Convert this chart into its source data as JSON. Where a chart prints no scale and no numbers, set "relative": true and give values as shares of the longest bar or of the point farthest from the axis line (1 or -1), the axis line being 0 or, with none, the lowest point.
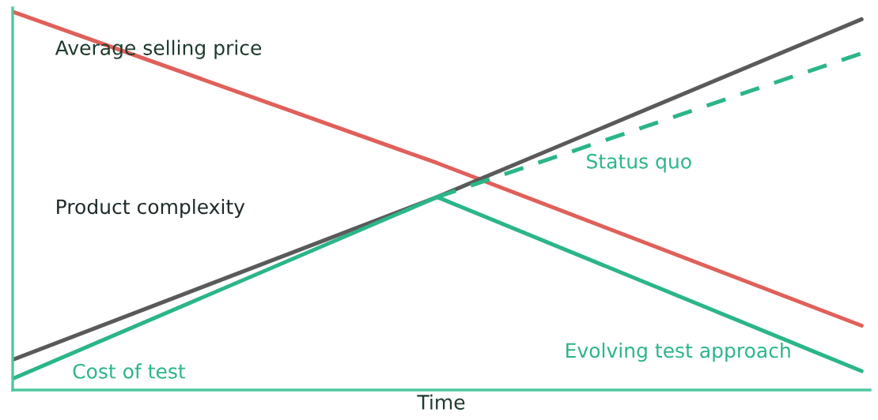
{
  "chart_data": {
    "type": "line",
    "relative": true,
    "xlabel": "Time",
    "categories": [
      null,
      null,
      null
    ],
    "legend": false,
    "tick_labels": false,
    "series": [
      {
        "name": "Average selling price",
        "color": "#e0605a",
        "values": [
          1,
          0.6,
          0.17
        ]
      },
      {
        "name": "Product complexity",
        "color": "#5a5a5a",
        "values": [
          0.08,
          0.51,
          0.98
        ]
      },
      {
        "name": "Cost of test",
        "color": "#2bb58a",
        "values": [
          0.03,
          0.51,
          null
        ]
      },
      {
        "name": "Status quo",
        "color": "#2bb58a",
        "values": [
          null,
          0.51,
          0.89
        ],
        "line_style": "dashed"
      },
      {
        "name": "Evolving test approach",
        "color": "#2bb58a",
        "values": [
          null,
          0.51,
          0.05
        ]
      }
    ]
  }
}
